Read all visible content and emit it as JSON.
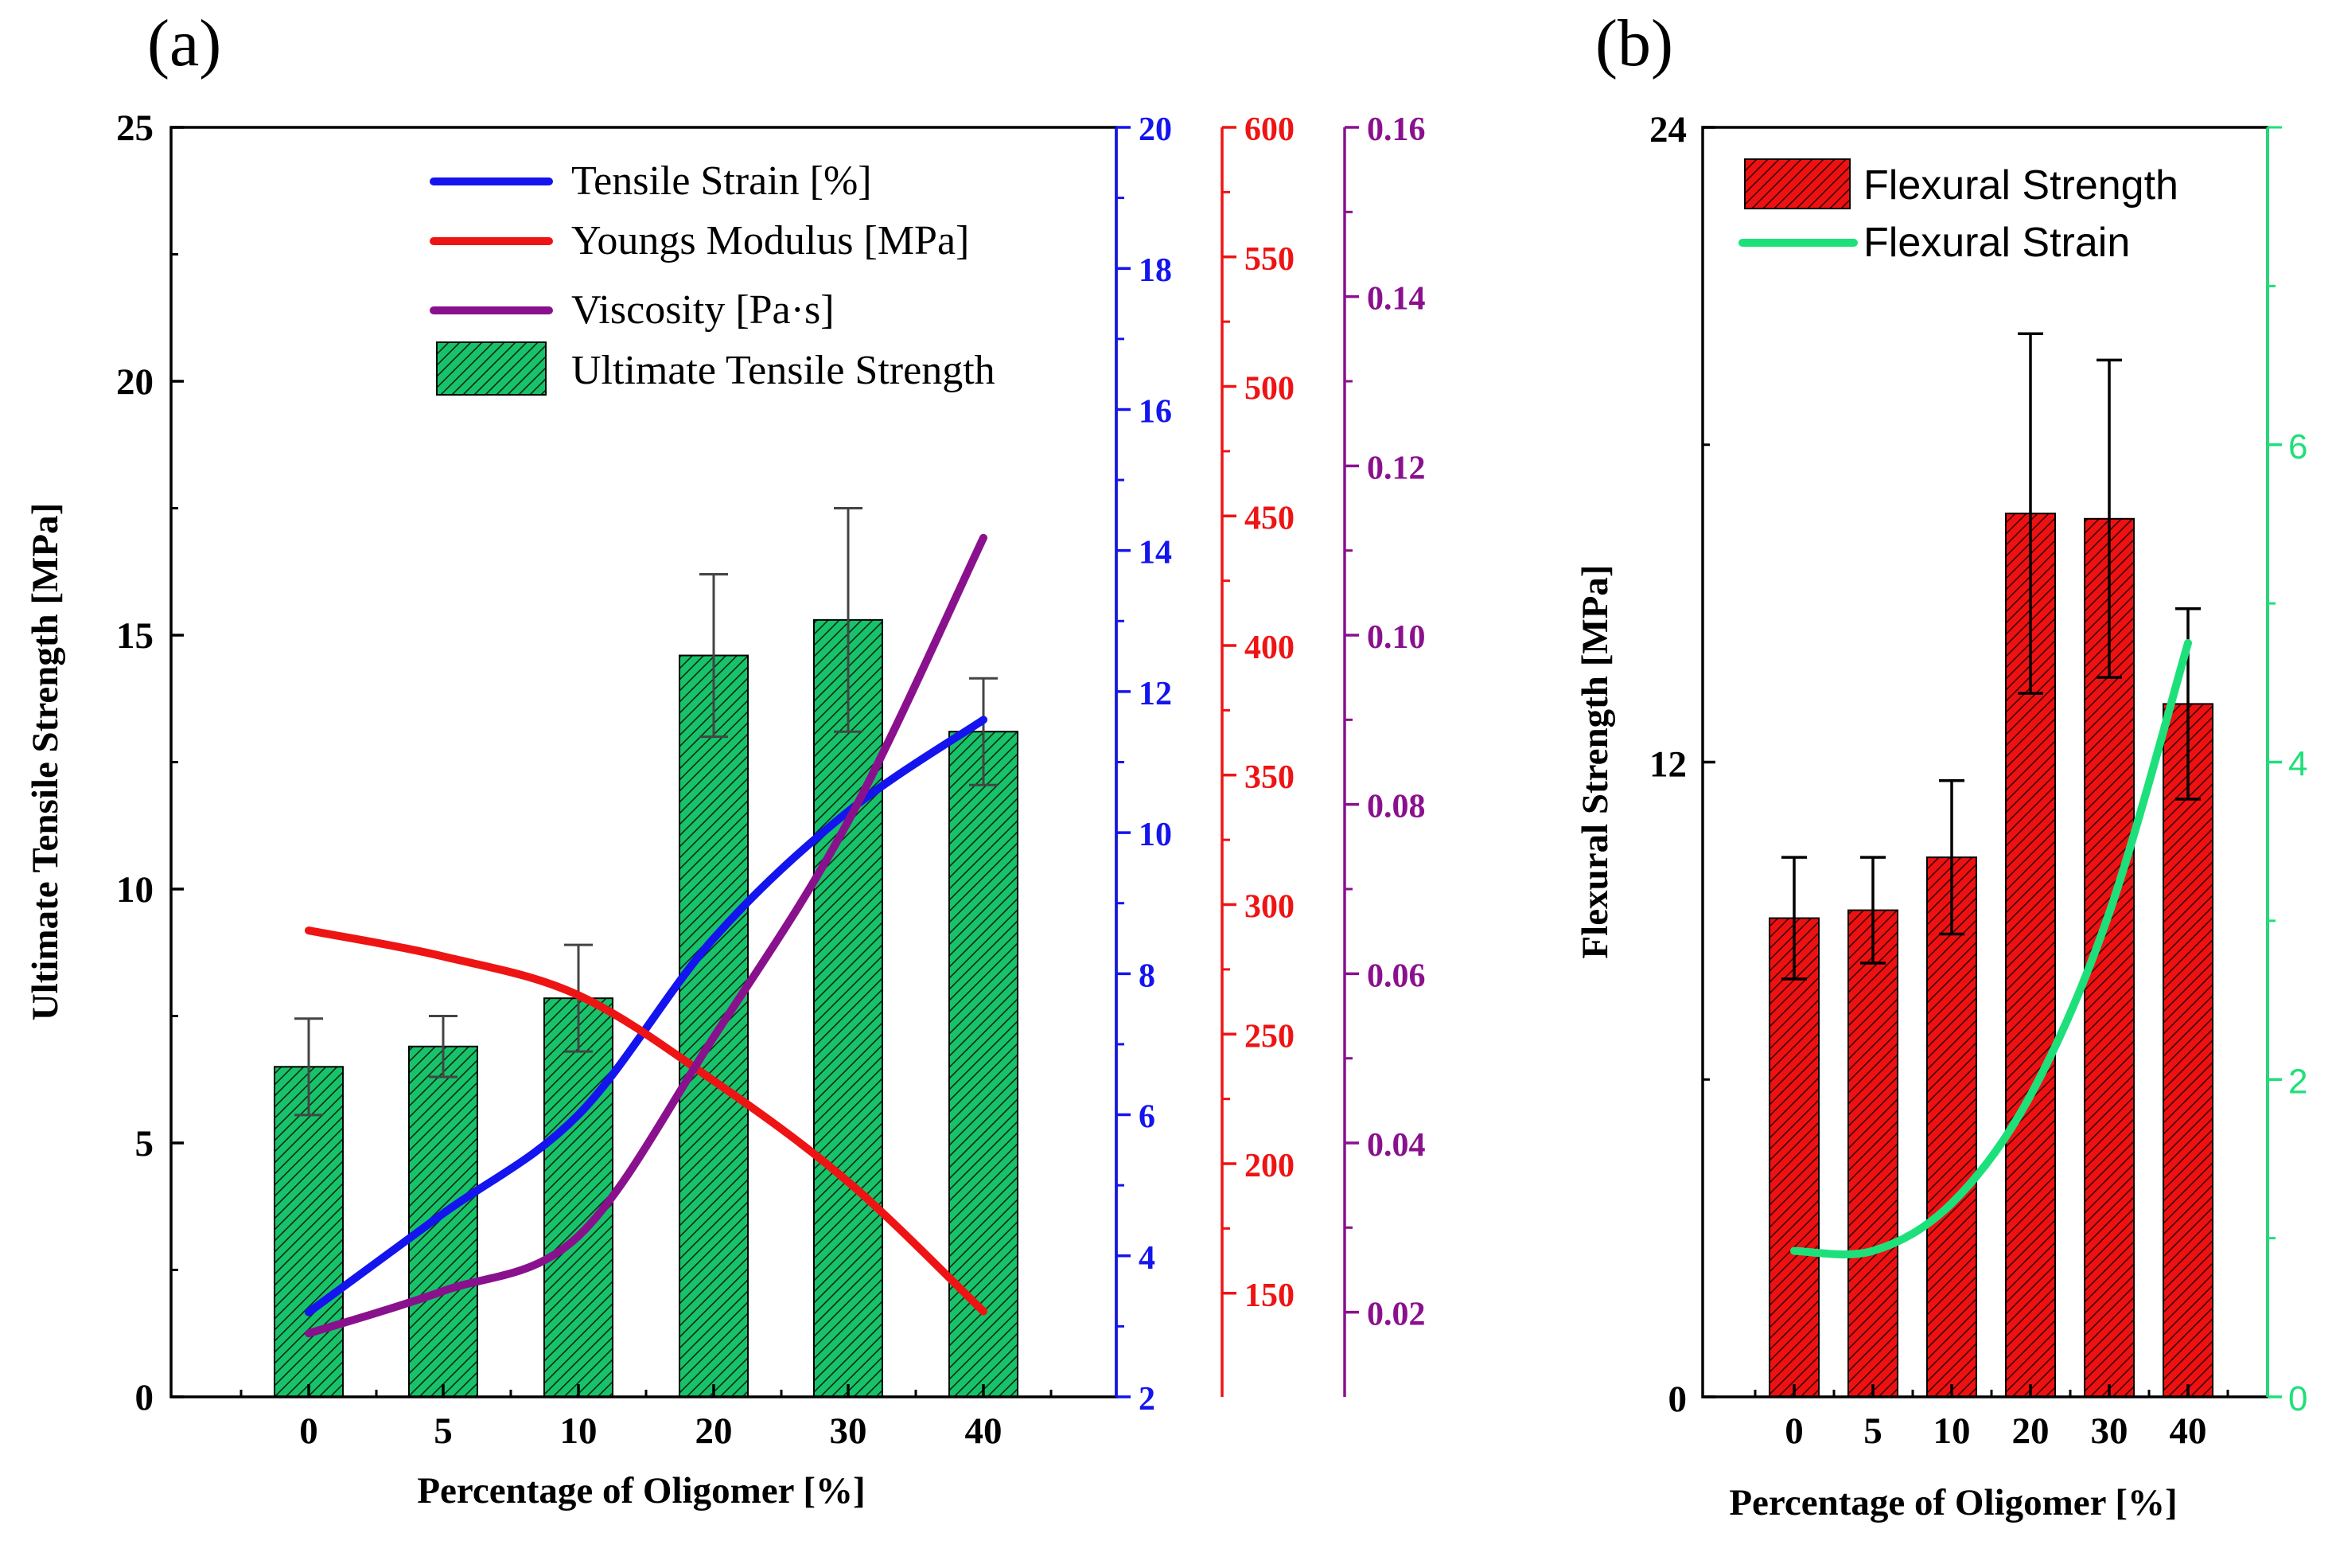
{
  "chart_data": [
    {
      "panel": "(a)",
      "type": "bar",
      "categories": [
        "0",
        "5",
        "10",
        "20",
        "30",
        "40"
      ],
      "xlabel": "Percentage of Oligomer [%]",
      "ylabel": "Ultimate Tensile Strength [MPa]",
      "ylim": [
        0,
        25
      ],
      "yticks": [
        "0",
        "5",
        "10",
        "15",
        "20",
        "25"
      ],
      "bar_series": {
        "name": "Ultimate Tensile Strength",
        "values": [
          6.5,
          6.9,
          7.85,
          14.6,
          15.3,
          13.1
        ],
        "errors": [
          0.95,
          0.6,
          1.05,
          1.6,
          2.2,
          1.05
        ],
        "color": "#18c26a"
      },
      "right_axes": [
        {
          "key": "strain",
          "ylim": [
            2,
            20
          ],
          "ticks": [
            "2",
            "4",
            "6",
            "8",
            "10",
            "12",
            "14",
            "16",
            "18",
            "20"
          ],
          "color": "#1414ee"
        },
        {
          "key": "modulus",
          "ylim": [
            110,
            600
          ],
          "ticks": [
            "150",
            "200",
            "250",
            "300",
            "350",
            "400",
            "450",
            "500",
            "550",
            "600"
          ],
          "color": "#ee1414"
        },
        {
          "key": "viscosity",
          "ylim": [
            0.01,
            0.16
          ],
          "ticks": [
            "0.02",
            "0.04",
            "0.06",
            "0.08",
            "0.10",
            "0.12",
            "0.14",
            "0.16"
          ],
          "color": "#8a118e"
        }
      ],
      "line_series": [
        {
          "name": "Tensile Strain [%]",
          "axis": "strain",
          "values": [
            3.2,
            4.6,
            6.0,
            8.5,
            10.3,
            11.6
          ],
          "color": "#1414ee"
        },
        {
          "name": "Youngs Modulus [MPa]",
          "axis": "modulus",
          "values": [
            290,
            280,
            265,
            232,
            193,
            143
          ],
          "color": "#ee1414"
        },
        {
          "name": "Viscosity [Pa·s]",
          "axis": "viscosity",
          "values": [
            0.0175,
            0.0225,
            0.029,
            0.0525,
            0.078,
            0.1115
          ],
          "color": "#8a118e"
        }
      ],
      "legend": [
        "Tensile Strain [%]",
        "Youngs Modulus [MPa]",
        "Viscosity [Pa·s]",
        "Ultimate Tensile Strength"
      ],
      "legend_position": "top-right"
    },
    {
      "panel": "(b)",
      "type": "bar",
      "categories": [
        "0",
        "5",
        "10",
        "20",
        "30",
        "40"
      ],
      "xlabel": "Percentage of Oligomer [%]",
      "ylabel": "Flexural Strength [MPa]",
      "ylim": [
        0,
        24
      ],
      "yticks": [
        "0",
        "12",
        "24"
      ],
      "bar_series": {
        "name": "Flexural Strength",
        "values": [
          9.05,
          9.2,
          10.2,
          16.7,
          16.6,
          13.1
        ],
        "errors": [
          1.15,
          1.0,
          1.45,
          3.4,
          3.0,
          1.8
        ],
        "color": "#ee1111"
      },
      "right_axis": {
        "ylim": [
          0,
          8
        ],
        "ticks": [
          "0",
          "2",
          "4",
          "6"
        ],
        "color": "#1ee07a"
      },
      "line_series": [
        {
          "name": "Flexural Strain",
          "axis": "right",
          "values": [
            0.92,
            0.92,
            1.22,
            1.9,
            3.05,
            4.75
          ],
          "color": "#1ee07a"
        }
      ],
      "legend": [
        "Flexural Strength",
        "Flexural Strain"
      ],
      "legend_position": "top-right"
    }
  ]
}
